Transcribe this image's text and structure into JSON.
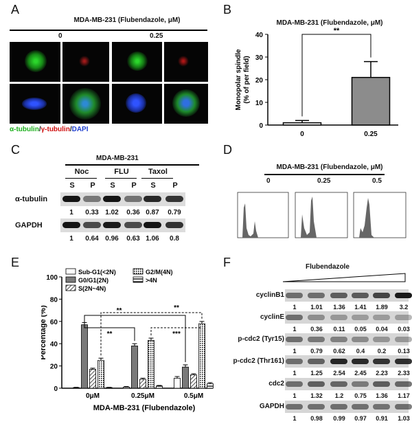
{
  "panels": {
    "A": {
      "label": "A",
      "title": "MDA-MB-231 (Flubendazole, μM)",
      "doses": [
        "0",
        "0.25"
      ],
      "legend": {
        "green": "α-tubulin",
        "slash1": "/",
        "red": "γ-tubulin",
        "slash2": "/",
        "blue": "DAPI"
      },
      "colors": {
        "green": "#1db01d",
        "red": "#d01010",
        "blue": "#1f3fd0"
      }
    },
    "B": {
      "label": "B",
      "title": "MDA-MB-231 (Flubendazole, μM)",
      "significance": "**"
    },
    "C": {
      "label": "C",
      "title": "MDA-MB-231",
      "groups": [
        "Noc",
        "FLU",
        "Taxol"
      ],
      "fractions": [
        "S",
        "P",
        "S",
        "P",
        "S",
        "P"
      ],
      "rows": [
        {
          "name": "α-tubulin",
          "values": [
            "1",
            "0.33",
            "1.02",
            "0.36",
            "0.87",
            "0.79"
          ]
        },
        {
          "name": "GAPDH",
          "values": [
            "1",
            "0.64",
            "0.96",
            "0.63",
            "1.06",
            "0.8"
          ]
        }
      ]
    },
    "D": {
      "label": "D",
      "title": "MDA-MB-231 (Flubendazole, μM)",
      "doses": [
        "0",
        "0.25",
        "0.5"
      ]
    },
    "E": {
      "label": "E",
      "significance": [
        "**",
        "**",
        "**",
        "***"
      ]
    },
    "F": {
      "label": "F",
      "title": "Flubendazole",
      "rows": [
        {
          "name": "cyclinB1",
          "values": [
            "1",
            "1.01",
            "1.36",
            "1.41",
            "1.89",
            "3.2"
          ]
        },
        {
          "name": "cyclinE",
          "values": [
            "1",
            "0.36",
            "0.11",
            "0.05",
            "0.04",
            "0.03"
          ]
        },
        {
          "name": "p-cdc2 (Tyr15)",
          "values": [
            "1",
            "0.79",
            "0.62",
            "0.4",
            "0.2",
            "0.13"
          ]
        },
        {
          "name": "p-cdc2 (Thr161)",
          "values": [
            "1",
            "1.25",
            "2.54",
            "2.45",
            "2.23",
            "2.33"
          ]
        },
        {
          "name": "cdc2",
          "values": [
            "1",
            "1.32",
            "1.2",
            "0.75",
            "1.36",
            "1.17"
          ]
        },
        {
          "name": "GAPDH",
          "values": [
            "1",
            "0.98",
            "0.99",
            "0.97",
            "0.91",
            "1.03"
          ]
        }
      ]
    }
  },
  "chart_data": [
    {
      "panel": "B",
      "type": "bar",
      "categories": [
        "0",
        "0.25"
      ],
      "values": [
        1,
        21
      ],
      "errors": [
        1,
        7
      ],
      "colors": [
        "#ffffff",
        "#8c8c8c"
      ],
      "title": "MDA-MB-231 (Flubendazole, μM)",
      "xlabel": "",
      "ylabel": "Monopolar spindle\n(% of per field)",
      "ylim": [
        0,
        40
      ],
      "yticks": [
        "0",
        "10",
        "20",
        "30",
        "40"
      ]
    },
    {
      "panel": "E",
      "type": "bar",
      "categories": [
        "0μM",
        "0.25μM",
        "0.5μM"
      ],
      "xlabel": "MDA-MB-231 (Flubendazole)",
      "ylabel": "Percentage (%)",
      "ylim": [
        0,
        100
      ],
      "yticks": [
        "0",
        "20",
        "40",
        "60",
        "80",
        "100"
      ],
      "legend_position": "top-left",
      "series": [
        {
          "name": "Sub-G1(<2N)",
          "pattern": "white",
          "values": [
            0.5,
            1,
            9
          ],
          "errors": [
            0.3,
            0.5,
            1.5
          ]
        },
        {
          "name": "G0/G1(2N)",
          "pattern": "gray",
          "values": [
            57,
            38,
            19
          ],
          "errors": [
            2,
            2,
            2
          ]
        },
        {
          "name": "S(2N~4N)",
          "pattern": "diagonal",
          "values": [
            17,
            8,
            12
          ],
          "errors": [
            1,
            1,
            1
          ]
        },
        {
          "name": "G2/M(4N)",
          "pattern": "dots",
          "values": [
            25,
            43,
            58
          ],
          "errors": [
            2,
            2,
            2
          ]
        },
        {
          "name": ">4N",
          "pattern": "hstripes",
          "values": [
            0.5,
            2,
            4
          ],
          "errors": [
            0.3,
            0.5,
            1
          ]
        }
      ]
    }
  ]
}
